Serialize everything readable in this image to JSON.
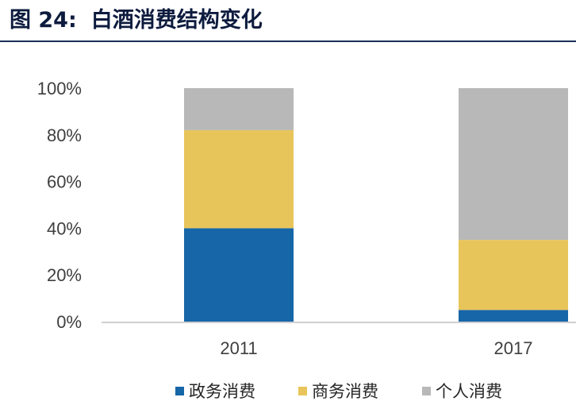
{
  "figure_label": "图 24:",
  "figure_title": "白酒消费结构变化",
  "colors": {
    "title": "#0d1b3e",
    "axis_text": "#3f3f3f",
    "axis_line": "#bfbfbf"
  },
  "chart_data": {
    "type": "bar",
    "stacked": true,
    "categories": [
      "2011",
      "2017"
    ],
    "series": [
      {
        "name": "政务消费",
        "values": [
          40,
          5
        ],
        "color": "#1766a8"
      },
      {
        "name": "商务消费",
        "values": [
          42,
          30
        ],
        "color": "#e8c55a"
      },
      {
        "name": "个人消费",
        "values": [
          18,
          65
        ],
        "color": "#b8b8b8"
      }
    ],
    "ylim": [
      0,
      100
    ],
    "yticks": [
      "0%",
      "20%",
      "40%",
      "60%",
      "80%",
      "100%"
    ],
    "xlabel": "",
    "ylabel": "",
    "grid": false,
    "legend_position": "bottom"
  }
}
